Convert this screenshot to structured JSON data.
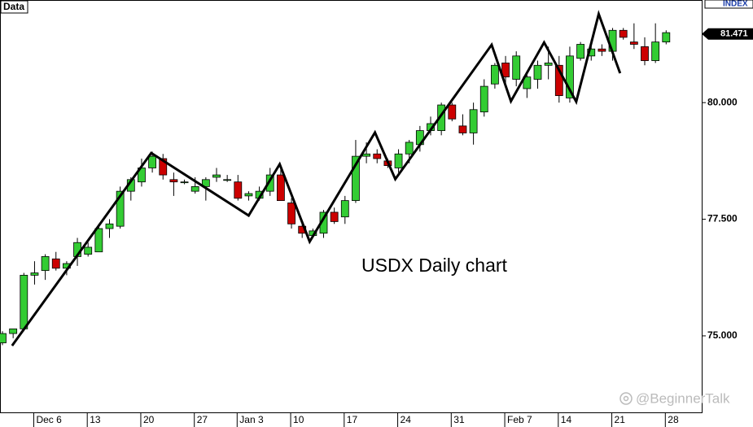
{
  "chart_data": {
    "type": "candlestick",
    "title": "USDX Daily chart",
    "legend_label": "Data",
    "index_label": "INDEX",
    "watermark": "@BeginnerTalk",
    "last_price": {
      "value": 81.471,
      "label": "81.471"
    },
    "up_color": "#33cc33",
    "down_color": "#cc0000",
    "categories": [
      null,
      null,
      null,
      "Dec 6",
      null,
      null,
      null,
      null,
      "13",
      null,
      null,
      null,
      null,
      "20",
      null,
      null,
      null,
      null,
      "27",
      null,
      null,
      null,
      "Jan 3",
      null,
      null,
      null,
      null,
      "10",
      null,
      null,
      null,
      null,
      "17",
      null,
      null,
      null,
      null,
      "24",
      null,
      null,
      null,
      null,
      "31",
      null,
      null,
      null,
      null,
      "Feb 7",
      null,
      null,
      null,
      null,
      "14",
      null,
      null,
      null,
      null,
      "21",
      null,
      null,
      null,
      null,
      "28"
    ],
    "open": [
      74.85,
      75.05,
      75.15,
      76.3,
      76.4,
      76.65,
      76.45,
      76.7,
      76.75,
      76.8,
      77.3,
      77.35,
      78.1,
      78.3,
      78.6,
      78.8,
      78.35,
      78.3,
      78.1,
      78.2,
      78.4,
      78.35,
      78.3,
      78.0,
      77.95,
      78.1,
      78.45,
      77.85,
      77.35,
      77.15,
      77.2,
      77.65,
      77.55,
      77.9,
      78.85,
      78.9,
      78.75,
      78.6,
      78.9,
      79.1,
      79.4,
      79.4,
      79.95,
      79.5,
      79.35,
      79.8,
      80.4,
      80.85,
      80.5,
      80.3,
      80.5,
      80.8,
      80.8,
      80.1,
      80.95,
      81.0,
      81.15,
      81.1,
      81.55,
      81.3,
      81.2,
      80.9,
      81.3
    ],
    "high": [
      75.1,
      75.15,
      76.35,
      76.6,
      76.75,
      76.8,
      76.6,
      77.1,
      77.0,
      77.4,
      77.5,
      78.2,
      78.4,
      78.8,
      78.95,
      78.9,
      78.5,
      78.35,
      78.4,
      78.4,
      78.6,
      78.45,
      78.45,
      78.1,
      78.2,
      78.6,
      78.65,
      77.95,
      77.45,
      77.3,
      77.7,
      77.75,
      78.0,
      79.2,
      79.15,
      79.0,
      78.8,
      79.0,
      79.2,
      79.5,
      79.7,
      80.0,
      80.0,
      79.75,
      80.0,
      80.5,
      80.85,
      81.0,
      81.1,
      80.6,
      80.9,
      81.2,
      81.0,
      81.2,
      81.3,
      81.35,
      81.25,
      81.6,
      81.6,
      81.7,
      81.4,
      81.7,
      81.55
    ],
    "low": [
      74.8,
      74.95,
      75.1,
      76.1,
      76.2,
      76.4,
      76.3,
      76.5,
      76.7,
      76.8,
      77.1,
      77.3,
      77.9,
      78.2,
      78.5,
      78.35,
      78.0,
      78.25,
      78.05,
      77.9,
      78.3,
      78.3,
      77.9,
      77.9,
      77.9,
      78.0,
      77.9,
      77.3,
      77.1,
      77.1,
      77.1,
      77.4,
      77.4,
      77.85,
      78.7,
      78.7,
      78.6,
      78.5,
      78.7,
      78.95,
      79.3,
      79.3,
      79.6,
      79.3,
      79.1,
      79.7,
      80.3,
      80.4,
      80.35,
      80.1,
      80.3,
      80.5,
      80.0,
      80.0,
      80.9,
      80.9,
      81.0,
      80.9,
      81.35,
      81.15,
      80.8,
      80.85,
      81.25
    ],
    "close": [
      75.05,
      75.15,
      76.3,
      76.35,
      76.7,
      76.45,
      76.55,
      77.0,
      76.9,
      77.3,
      77.4,
      78.1,
      78.35,
      78.6,
      78.85,
      78.45,
      78.3,
      78.3,
      78.2,
      78.35,
      78.45,
      78.35,
      77.95,
      78.05,
      78.1,
      78.45,
      77.9,
      77.4,
      77.2,
      77.25,
      77.65,
      77.45,
      77.9,
      78.85,
      78.9,
      78.8,
      78.65,
      78.9,
      79.15,
      79.4,
      79.55,
      79.95,
      79.65,
      79.35,
      79.85,
      80.35,
      80.8,
      80.55,
      81.0,
      80.55,
      80.8,
      80.85,
      80.15,
      81.0,
      81.25,
      81.15,
      81.1,
      81.55,
      81.4,
      81.25,
      80.9,
      81.3,
      81.5
    ],
    "zigzag": {
      "x": [
        0.9,
        13.9,
        23,
        25.9,
        28.7,
        34.8,
        36.7,
        45.7,
        47.5,
        50.6,
        53.6,
        55.7,
        57.7
      ],
      "values": [
        74.79,
        78.92,
        77.58,
        78.68,
        77.02,
        79.36,
        78.36,
        81.24,
        80.03,
        81.29,
        80.02,
        81.9,
        80.63
      ]
    },
    "ylim": [
      73.36,
      82.2
    ],
    "yticks": [
      {
        "value": 75,
        "label": "75.000"
      },
      {
        "value": 77.5,
        "label": "77.500"
      },
      {
        "value": 80,
        "label": "80.000"
      }
    ]
  }
}
